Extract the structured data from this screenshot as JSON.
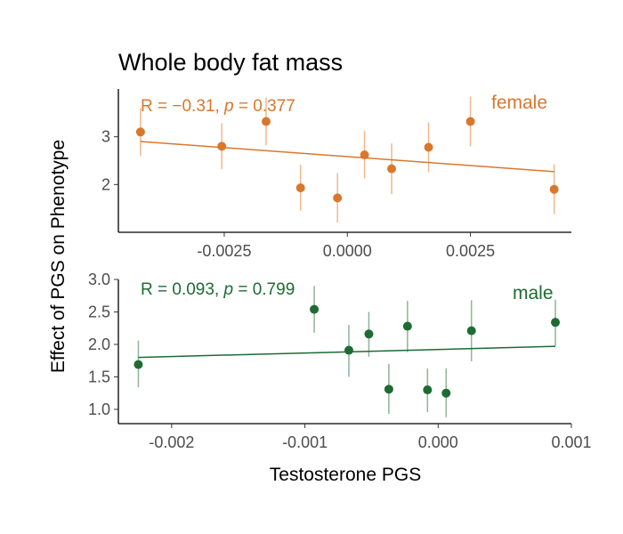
{
  "chart_data": {
    "type": "scatter",
    "title": "Whole body fat mass",
    "ylabel": "Effect of PGS on Phenotype",
    "xlabel": "Testosterone PGS",
    "panels": [
      {
        "name": "female",
        "color": "#D8782E",
        "errcolor": "#EDB98C",
        "annotation_prefix": "R = −0.31, ",
        "annotation_p": "p",
        "annotation_suffix": " = 0.377",
        "xlim": [
          -0.00465,
          0.00455
        ],
        "ylim": [
          1.0,
          4.0
        ],
        "xticks": [
          -0.0025,
          0.0,
          0.0025
        ],
        "xtick_labels": [
          "-0.0025",
          "0.0000",
          "0.0025"
        ],
        "yticks": [
          2,
          3
        ],
        "ytick_labels": [
          "2",
          "3"
        ],
        "points": [
          {
            "x": -0.0042,
            "y": 3.1,
            "lo": 2.6,
            "hi": 3.6
          },
          {
            "x": -0.00255,
            "y": 2.8,
            "lo": 2.32,
            "hi": 3.28
          },
          {
            "x": -0.00165,
            "y": 3.32,
            "lo": 2.82,
            "hi": 3.82
          },
          {
            "x": -0.00095,
            "y": 1.93,
            "lo": 1.45,
            "hi": 2.41
          },
          {
            "x": -0.0002,
            "y": 1.72,
            "lo": 1.2,
            "hi": 2.24
          },
          {
            "x": 0.00035,
            "y": 2.62,
            "lo": 2.12,
            "hi": 3.12
          },
          {
            "x": 0.0009,
            "y": 2.33,
            "lo": 1.8,
            "hi": 2.86
          },
          {
            "x": 0.00165,
            "y": 2.78,
            "lo": 2.26,
            "hi": 3.3
          },
          {
            "x": 0.0025,
            "y": 3.32,
            "lo": 2.8,
            "hi": 3.84
          },
          {
            "x": 0.0042,
            "y": 1.9,
            "lo": 1.38,
            "hi": 2.42
          }
        ],
        "fit": {
          "x": [
            -0.0042,
            0.0042
          ],
          "y": [
            2.9,
            2.27
          ]
        }
      },
      {
        "name": "male",
        "color": "#1E6B34",
        "errcolor": "#8DB596",
        "annotation_prefix": "R = 0.093, ",
        "annotation_p": "p",
        "annotation_suffix": " = 0.799",
        "xlim": [
          -0.0024,
          0.001
        ],
        "ylim": [
          0.78,
          3.0
        ],
        "xticks": [
          -0.002,
          -0.001,
          0.0,
          0.001
        ],
        "xtick_labels": [
          "-0.002",
          "-0.001",
          "0.000",
          "0.001"
        ],
        "yticks": [
          1.0,
          1.5,
          2.0,
          2.5,
          3.0
        ],
        "ytick_labels": [
          "1.0",
          "1.5",
          "2.0",
          "2.5",
          "3.0"
        ],
        "points": [
          {
            "x": -0.00225,
            "y": 1.69,
            "lo": 1.34,
            "hi": 2.06
          },
          {
            "x": -0.00093,
            "y": 2.54,
            "lo": 2.18,
            "hi": 2.9
          },
          {
            "x": -0.00067,
            "y": 1.91,
            "lo": 1.5,
            "hi": 2.3
          },
          {
            "x": -0.00052,
            "y": 2.16,
            "lo": 1.81,
            "hi": 2.5
          },
          {
            "x": -0.00037,
            "y": 1.31,
            "lo": 0.93,
            "hi": 1.7
          },
          {
            "x": -0.00023,
            "y": 2.28,
            "lo": 1.88,
            "hi": 2.67
          },
          {
            "x": -8e-05,
            "y": 1.3,
            "lo": 0.96,
            "hi": 1.63
          },
          {
            "x": 6e-05,
            "y": 1.25,
            "lo": 0.88,
            "hi": 1.63
          },
          {
            "x": 0.00025,
            "y": 2.21,
            "lo": 1.74,
            "hi": 2.68
          },
          {
            "x": 0.00088,
            "y": 2.34,
            "lo": 1.98,
            "hi": 2.69
          }
        ],
        "fit": {
          "x": [
            -0.00225,
            0.00088
          ],
          "y": [
            1.8,
            1.97
          ]
        }
      }
    ]
  }
}
